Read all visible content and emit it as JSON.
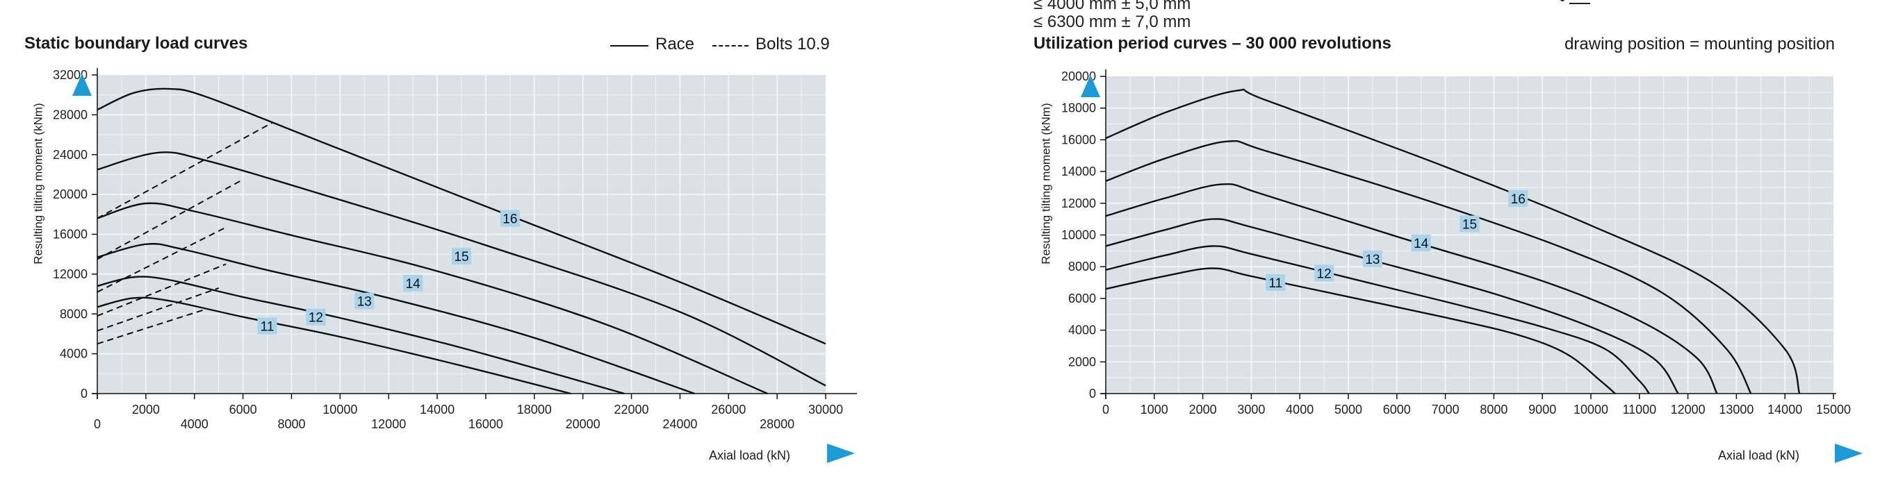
{
  "header_fragments": {
    "line1": "≤  4000 mm ± 5,0 mm",
    "line2": "≤  6300 mm ± 7,0 mm"
  },
  "colors": {
    "plot_bg": "#dbe1e4",
    "grid": "#f2f5f6",
    "accent": "#1a9ad6",
    "label_bg": "#a8d4ec"
  },
  "chart_data": [
    {
      "type": "line",
      "title": "Static boundary load curves",
      "legend": [
        {
          "name": "Race",
          "style": "solid"
        },
        {
          "name": "Bolts 10.9",
          "style": "dashed"
        }
      ],
      "legend_position": "top-right",
      "xlabel": "Axial load (kN)",
      "ylabel": "Resulting tilting moment (kNm)",
      "xlim": [
        0,
        30000
      ],
      "ylim": [
        0,
        32000
      ],
      "x_ticks_primary": [
        0,
        4000,
        8000,
        12000,
        16000,
        20000,
        24000,
        28000
      ],
      "x_ticks_secondary": [
        2000,
        6000,
        10000,
        14000,
        18000,
        22000,
        26000,
        30000
      ],
      "y_ticks": [
        0,
        4000,
        8000,
        12000,
        16000,
        20000,
        24000,
        28000,
        32000
      ],
      "grid": true,
      "series": [
        {
          "name": "11",
          "style": "solid",
          "label_at": [
            7000,
            6800
          ],
          "x": [
            0,
            1500,
            3000,
            6000,
            10000,
            15000,
            19500
          ],
          "y": [
            8700,
            9600,
            9300,
            7700,
            5700,
            2800,
            0
          ]
        },
        {
          "name": "12",
          "style": "solid",
          "label_at": [
            9000,
            7700
          ],
          "x": [
            0,
            1500,
            3000,
            6000,
            10000,
            15000,
            21700
          ],
          "y": [
            10800,
            11700,
            11400,
            9700,
            7600,
            4600,
            0
          ]
        },
        {
          "name": "13",
          "style": "solid",
          "label_at": [
            11000,
            9300
          ],
          "x": [
            0,
            2000,
            3500,
            7000,
            12000,
            18000,
            24600
          ],
          "y": [
            13700,
            15000,
            14500,
            12400,
            9600,
            5600,
            0
          ]
        },
        {
          "name": "14",
          "style": "solid",
          "label_at": [
            13000,
            11100
          ],
          "x": [
            0,
            2000,
            4000,
            8000,
            14000,
            21000,
            27600
          ],
          "y": [
            17600,
            19100,
            18300,
            15900,
            12300,
            6900,
            0
          ]
        },
        {
          "name": "15",
          "style": "solid",
          "label_at": [
            15000,
            13800
          ],
          "x": [
            0,
            2500,
            4500,
            9000,
            16000,
            24000,
            30000
          ],
          "y": [
            22500,
            24200,
            23400,
            20200,
            14900,
            8200,
            800
          ]
        },
        {
          "name": "16",
          "style": "solid",
          "label_at": [
            17000,
            17600
          ],
          "x": [
            0,
            1500,
            3000,
            4500,
            9000,
            16000,
            24000,
            30000
          ],
          "y": [
            28500,
            30200,
            30600,
            29800,
            25500,
            18800,
            11200,
            5000
          ]
        },
        {
          "name": "",
          "style": "dashed",
          "x": [
            0,
            4500
          ],
          "y": [
            5000,
            8500
          ]
        },
        {
          "name": "",
          "style": "dashed",
          "x": [
            0,
            5000
          ],
          "y": [
            6300,
            10600
          ]
        },
        {
          "name": "",
          "style": "dashed",
          "x": [
            0,
            5300
          ],
          "y": [
            7800,
            13000
          ]
        },
        {
          "name": "",
          "style": "dashed",
          "x": [
            0,
            5300
          ],
          "y": [
            10200,
            16700
          ]
        },
        {
          "name": "",
          "style": "dashed",
          "x": [
            0,
            6000
          ],
          "y": [
            13500,
            21500
          ]
        },
        {
          "name": "",
          "style": "dashed",
          "x": [
            0,
            7200
          ],
          "y": [
            17600,
            27200
          ]
        }
      ]
    },
    {
      "type": "line",
      "title": "Utilization period curves – 30 000 revolutions",
      "note": "drawing position = mounting position",
      "xlabel": "Axial load (kN)",
      "ylabel": "Resulting tilting moment (kNm)",
      "xlim": [
        0,
        15000
      ],
      "ylim": [
        0,
        20000
      ],
      "x_ticks": [
        0,
        1000,
        2000,
        3000,
        4000,
        5000,
        6000,
        7000,
        8000,
        9000,
        10000,
        11000,
        12000,
        13000,
        14000,
        15000
      ],
      "y_ticks": [
        0,
        2000,
        4000,
        6000,
        8000,
        10000,
        12000,
        14000,
        16000,
        18000,
        20000
      ],
      "grid": true,
      "series": [
        {
          "name": "11",
          "label_at": [
            3500,
            7000
          ],
          "x": [
            0,
            1200,
            2200,
            3000,
            5000,
            7000,
            8500,
            9500,
            10200,
            10500
          ],
          "y": [
            6600,
            7400,
            7900,
            7400,
            6100,
            4800,
            3700,
            2500,
            800,
            0
          ]
        },
        {
          "name": "12",
          "label_at": [
            4500,
            7600
          ],
          "x": [
            0,
            1200,
            2200,
            3000,
            5000,
            7000,
            9000,
            10300,
            11000,
            11200
          ],
          "y": [
            7800,
            8700,
            9300,
            8800,
            7300,
            5800,
            4200,
            2800,
            800,
            0
          ]
        },
        {
          "name": "13",
          "label_at": [
            5500,
            8500
          ],
          "x": [
            0,
            1200,
            2200,
            3000,
            5500,
            8000,
            10000,
            11300,
            11800
          ],
          "y": [
            9300,
            10300,
            11000,
            10500,
            8400,
            6300,
            4200,
            2200,
            0
          ]
        },
        {
          "name": "14",
          "label_at": [
            6500,
            9500
          ],
          "x": [
            0,
            1200,
            2400,
            3200,
            6000,
            9000,
            11000,
            12200,
            12600
          ],
          "y": [
            11200,
            12300,
            13200,
            12600,
            9900,
            7100,
            4600,
            2200,
            0
          ]
        },
        {
          "name": "15",
          "label_at": [
            7500,
            10700
          ],
          "x": [
            0,
            1200,
            2500,
            3300,
            6500,
            9500,
            11500,
            12800,
            13300
          ],
          "y": [
            13400,
            14800,
            15900,
            15300,
            12300,
            9100,
            6300,
            2800,
            0
          ]
        },
        {
          "name": "16",
          "label_at": [
            8500,
            12300
          ],
          "x": [
            0,
            1300,
            2700,
            3300,
            7000,
            10000,
            12500,
            14000,
            14300
          ],
          "y": [
            16100,
            17800,
            19100,
            18500,
            14300,
            10600,
            7000,
            2800,
            0
          ]
        }
      ]
    }
  ]
}
